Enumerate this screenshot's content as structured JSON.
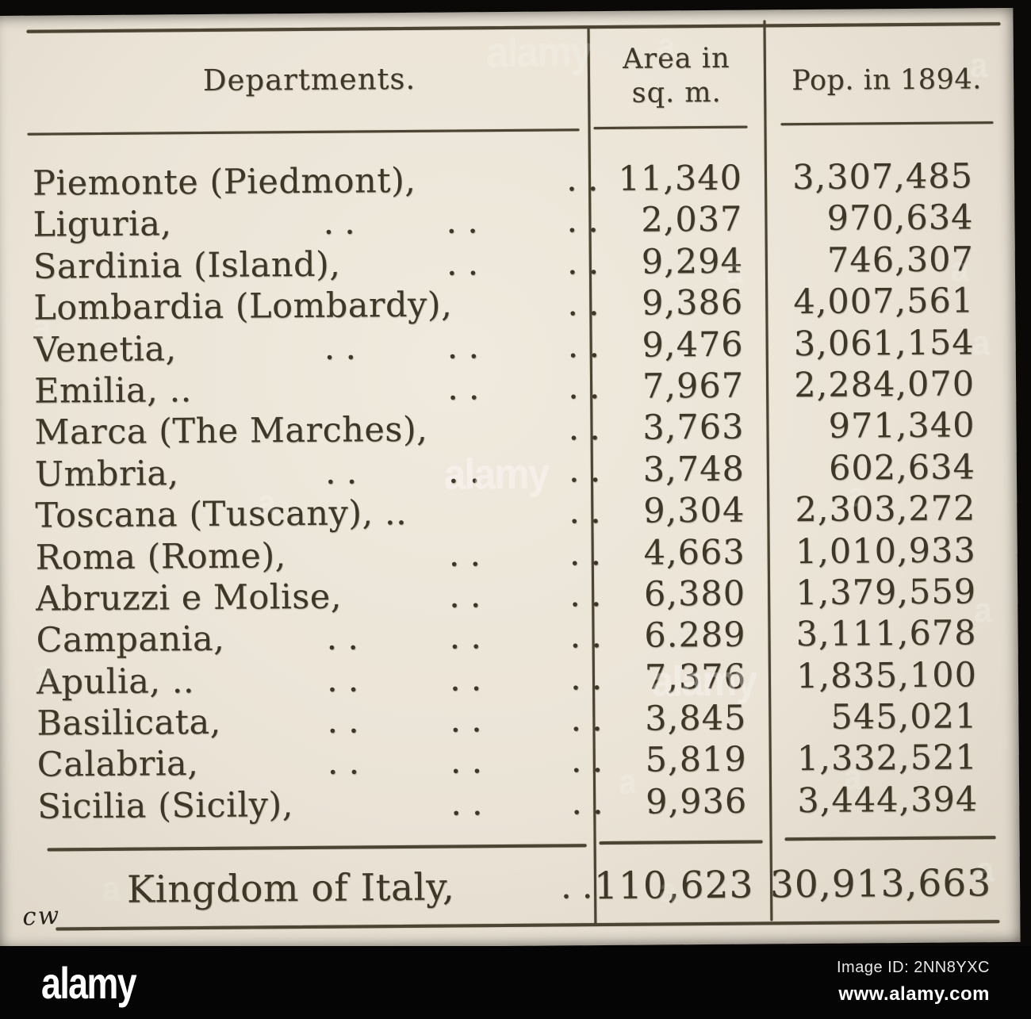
{
  "document": {
    "header": {
      "departments": "Departments.",
      "area_line1": "Area in",
      "area_line2": "sq. m.",
      "pop": "Pop. in 1894."
    },
    "rows": [
      {
        "name": "Piemonte (Piedmont),",
        "dots": [
          3
        ],
        "area": "11,340",
        "pop": "3,307,485"
      },
      {
        "name": "Liguria,",
        "dots": [
          1,
          2,
          3
        ],
        "area": "2,037",
        "pop": "970,634"
      },
      {
        "name": "Sardinia (Island),",
        "dots": [
          2,
          3
        ],
        "area": "9,294",
        "pop": "746,307"
      },
      {
        "name": "Lombardia (Lombardy),",
        "dots": [
          3
        ],
        "area": "9,386",
        "pop": "4,007,561"
      },
      {
        "name": "Venetia,",
        "dots": [
          1,
          2,
          3
        ],
        "area": "9,476",
        "pop": "3,061,154"
      },
      {
        "name": "Emilia, ..",
        "dots": [
          2,
          3
        ],
        "area": "7,967",
        "pop": "2,284,070"
      },
      {
        "name": "Marca (The Marches),",
        "dots": [
          3
        ],
        "area": "3,763",
        "pop": "971,340"
      },
      {
        "name": "Umbria,",
        "dots": [
          1,
          2,
          3
        ],
        "area": "3,748",
        "pop": "602,634"
      },
      {
        "name": "Toscana (Tuscany), ..",
        "dots": [
          3
        ],
        "area": "9,304",
        "pop": "2,303,272"
      },
      {
        "name": "Roma (Rome),",
        "dots": [
          2,
          3
        ],
        "area": "4,663",
        "pop": "1,010,933"
      },
      {
        "name": "Abruzzi e Molise,",
        "dots": [
          2,
          3
        ],
        "area": "6,380",
        "pop": "1,379,559"
      },
      {
        "name": "Campania,",
        "dots": [
          1,
          2,
          3
        ],
        "area": "6.289",
        "pop": "3,111,678"
      },
      {
        "name": "Apulia, ..",
        "dots": [
          1,
          2,
          3
        ],
        "area": "7,376",
        "pop": "1,835,100"
      },
      {
        "name": "Basilicata,",
        "dots": [
          1,
          2,
          3
        ],
        "area": "3,845",
        "pop": "545,021"
      },
      {
        "name": "Calabria,",
        "dots": [
          1,
          2,
          3
        ],
        "area": "5,819",
        "pop": "1,332,521"
      },
      {
        "name": "Sicilia (Sicily),",
        "dots": [
          2,
          3
        ],
        "area": "9,936",
        "pop": "3,444,394"
      }
    ],
    "total": {
      "name": "Kingdom of Italy,",
      "dots": [
        3
      ],
      "area": "110,623",
      "pop": "30,913,663"
    },
    "annotation": "cw"
  },
  "watermark": {
    "brand": "alamy",
    "image_id": "Image ID: 2NN8YXC",
    "url": "www.alamy.com"
  },
  "colors": {
    "paper": "#ebe4d8",
    "ink": "#3e3627"
  }
}
